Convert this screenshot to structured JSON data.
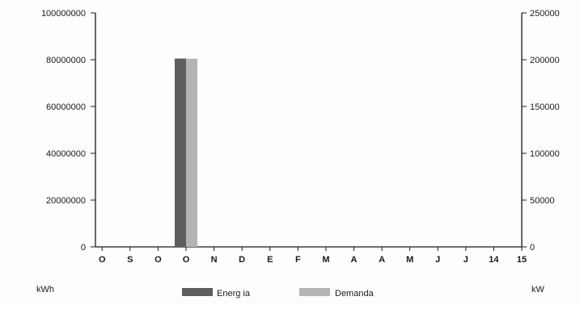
{
  "chart_data": {
    "type": "bar",
    "title": "",
    "categories": [
      "O",
      "S",
      "O",
      "O",
      "N",
      "D",
      "E",
      "F",
      "M",
      "A",
      "A",
      "M",
      "J",
      "J",
      "14",
      "15"
    ],
    "series": [
      {
        "name": "Energia",
        "axis": "left",
        "color": "#5e5e5e",
        "values": [
          0,
          0,
          0,
          80500000,
          0,
          0,
          0,
          0,
          0,
          0,
          0,
          0,
          0,
          0,
          0,
          0
        ]
      },
      {
        "name": "Demanda",
        "axis": "right",
        "color": "#b4b4b4",
        "values": [
          0,
          0,
          0,
          201000,
          0,
          0,
          0,
          0,
          0,
          0,
          0,
          0,
          0,
          0,
          0,
          0
        ]
      }
    ],
    "y_left": {
      "unit_label": "kWh",
      "range": [
        0,
        100000000
      ],
      "ticks": [
        0,
        20000000,
        40000000,
        60000000,
        80000000,
        100000000
      ],
      "tick_labels": [
        "0",
        "20000000",
        "40000000",
        "60000000",
        "80000000",
        "100000000"
      ]
    },
    "y_right": {
      "unit_label": "kW",
      "range": [
        0,
        250000
      ],
      "ticks": [
        0,
        50000,
        100000,
        150000,
        200000,
        250000
      ],
      "tick_labels": [
        "0",
        "50000",
        "100000",
        "150000",
        "200000",
        "250000"
      ]
    },
    "grid": false,
    "legend": {
      "position": "bottom",
      "entries": [
        "Energ ia",
        "Demanda"
      ]
    }
  }
}
